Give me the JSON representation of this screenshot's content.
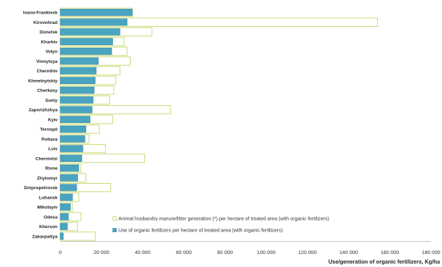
{
  "chart_data": {
    "type": "bar",
    "orientation": "horizontal",
    "categories": [
      "Ivano-Frankivsk",
      "Kirovohrad",
      "Donetsk",
      "Kharkiv",
      "Volyn",
      "Vinnytsya",
      "Chernihiv",
      "Khmelnytskiy",
      "Cherkasy",
      "Sumy",
      "Zaporizhzhya",
      "Kyiv",
      "Ternopil",
      "Poltava",
      "Lviv",
      "Chernivtsi",
      "Rivne",
      "Zhytomyr",
      "Dnipropetrovsk",
      "Luhansk",
      "Mikolayiv",
      "Odesa",
      "Kherson",
      "Zakarpattya"
    ],
    "series": [
      {
        "name": "Animal husbandry manure/litter generation (*) per hectare of treated area (with organic fertilizers)",
        "values": [
          35000,
          154000,
          44500,
          31000,
          32500,
          34000,
          29000,
          27000,
          26000,
          24000,
          53500,
          25500,
          19000,
          14000,
          22000,
          41000,
          10000,
          12500,
          24500,
          9000,
          6000,
          10000,
          8500,
          17000
        ],
        "fill": "#ffffff",
        "stroke": "#c6d870"
      },
      {
        "name": "Use of organic fertilizers per hectare of treated area (with organic fertilizers)",
        "values": [
          35000,
          32500,
          29000,
          25500,
          25000,
          18500,
          17500,
          17000,
          16500,
          16000,
          15500,
          14500,
          12500,
          12000,
          11000,
          10500,
          9000,
          8500,
          8000,
          6000,
          5000,
          4000,
          3500,
          1500
        ],
        "fill": "#4aa3c1",
        "stroke": "#3b8fab"
      }
    ],
    "x_ticks": [
      "0",
      "20 000",
      "40 000",
      "60 000",
      "80 000",
      "100 000",
      "120 000",
      "140 000",
      "160 000",
      "180 000"
    ],
    "xlim": [
      0,
      180000
    ],
    "xlabel": "Use/generation of organic fertilizers, Kg/ha",
    "legend": "bottom-right",
    "grid": false
  }
}
